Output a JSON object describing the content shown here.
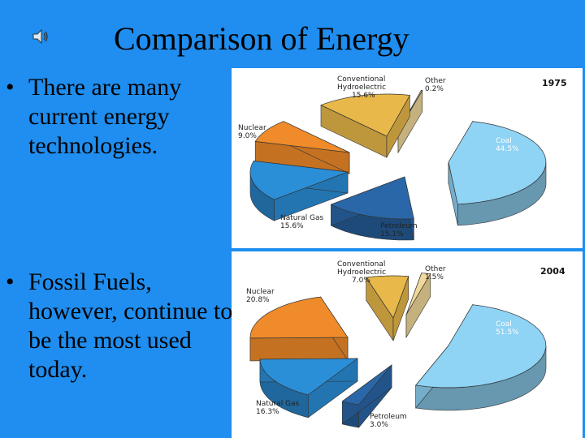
{
  "slide": {
    "title": "Comparison of Energy",
    "bullets": [
      "There are many current energy technologies.",
      "Fossil Fuels, however, continue to be the most used today."
    ],
    "bullet_symbol": "•",
    "speaker_icon": "speaker-icon"
  },
  "colors": {
    "background": "#1f8ef0",
    "coal": "#8fd3f5",
    "petroleum": "#2a67a8",
    "natural_gas": "#2b8fd8",
    "nuclear": "#ef8b2a",
    "hydro": "#e8b84a",
    "other": "#f0d89a"
  },
  "chart_data": [
    {
      "type": "pie",
      "title": "1975",
      "slices": [
        {
          "name": "Coal",
          "label": "Coal",
          "value": 44.5,
          "value_label": "44.5%"
        },
        {
          "name": "Petroleum",
          "label": "Petroleum",
          "value": 15.1,
          "value_label": "15.1%"
        },
        {
          "name": "Natural Gas",
          "label": "Natural Gas",
          "value": 15.6,
          "value_label": "15.6%"
        },
        {
          "name": "Nuclear",
          "label": "Nuclear",
          "value": 9.0,
          "value_label": "9.0%"
        },
        {
          "name": "Conventional Hydroelectric",
          "label": "Conventional Hydroelectric",
          "value": 15.6,
          "value_label": "15.6%"
        },
        {
          "name": "Other",
          "label": "Other",
          "value": 0.2,
          "value_label": "0.2%"
        }
      ]
    },
    {
      "type": "pie",
      "title": "2004",
      "slices": [
        {
          "name": "Coal",
          "label": "Coal",
          "value": 51.5,
          "value_label": "51.5%"
        },
        {
          "name": "Petroleum",
          "label": "Petroleum",
          "value": 3.0,
          "value_label": "3.0%"
        },
        {
          "name": "Natural Gas",
          "label": "Natural Gas",
          "value": 16.3,
          "value_label": "16.3%"
        },
        {
          "name": "Nuclear",
          "label": "Nuclear",
          "value": 20.8,
          "value_label": "20.8%"
        },
        {
          "name": "Conventional Hydroelectric",
          "label": "Conventional Hydroelectric",
          "value": 7.0,
          "value_label": "7.0%"
        },
        {
          "name": "Other",
          "label": "Other",
          "value": 1.5,
          "value_label": "1.5%"
        }
      ]
    }
  ]
}
